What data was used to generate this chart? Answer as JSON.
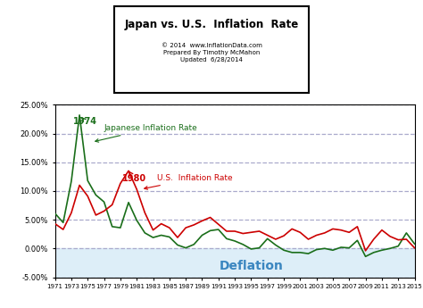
{
  "title_line1": "Japan vs. U.S.  Inflation  Rate",
  "subtitle": "© 2014  www.InflationData.com\nPrepared By Timothy McMahon\nUpdated  6/28/2014",
  "years": [
    1971,
    1972,
    1973,
    1974,
    1975,
    1976,
    1977,
    1978,
    1979,
    1980,
    1981,
    1982,
    1983,
    1984,
    1985,
    1986,
    1987,
    1988,
    1989,
    1990,
    1991,
    1992,
    1993,
    1994,
    1995,
    1996,
    1997,
    1998,
    1999,
    2000,
    2001,
    2002,
    2003,
    2004,
    2005,
    2006,
    2007,
    2008,
    2009,
    2010,
    2011,
    2012,
    2013,
    2014,
    2015
  ],
  "japan": [
    6.1,
    4.5,
    11.7,
    23.2,
    11.8,
    9.3,
    8.1,
    3.8,
    3.6,
    8.0,
    4.9,
    2.7,
    1.9,
    2.3,
    2.0,
    0.6,
    0.1,
    0.7,
    2.3,
    3.1,
    3.3,
    1.7,
    1.3,
    0.7,
    -0.1,
    0.1,
    1.7,
    0.6,
    -0.3,
    -0.7,
    -0.7,
    -0.9,
    -0.2,
    0.0,
    -0.3,
    0.2,
    0.1,
    1.4,
    -1.4,
    -0.7,
    -0.3,
    0.0,
    0.4,
    2.7,
    0.8
  ],
  "us": [
    4.3,
    3.3,
    6.2,
    11.0,
    9.1,
    5.8,
    6.5,
    7.6,
    11.3,
    13.5,
    10.3,
    6.2,
    3.2,
    4.3,
    3.6,
    1.9,
    3.6,
    4.1,
    4.8,
    5.4,
    4.2,
    3.0,
    3.0,
    2.6,
    2.8,
    3.0,
    2.3,
    1.6,
    2.2,
    3.4,
    2.8,
    1.6,
    2.3,
    2.7,
    3.4,
    3.2,
    2.8,
    3.8,
    -0.4,
    1.6,
    3.2,
    2.1,
    1.5,
    1.6,
    0.1
  ],
  "japan_color": "#1a6e1a",
  "us_color": "#cc0000",
  "deflation_color": "#ddeef8",
  "deflation_text_color": "#3a86c0",
  "grid_color": "#aaaacc",
  "ylim_min": -5.0,
  "ylim_max": 25.0,
  "yticks": [
    -5.0,
    0.0,
    5.0,
    10.0,
    15.0,
    20.0,
    25.0
  ],
  "annotation_1974": "1974",
  "annotation_1980": "1980",
  "label_japan": "Japanese Inflation Rate",
  "label_us": "U.S.  Inflation Rate",
  "label_deflation": "Deflation",
  "background_color": "#ffffff"
}
